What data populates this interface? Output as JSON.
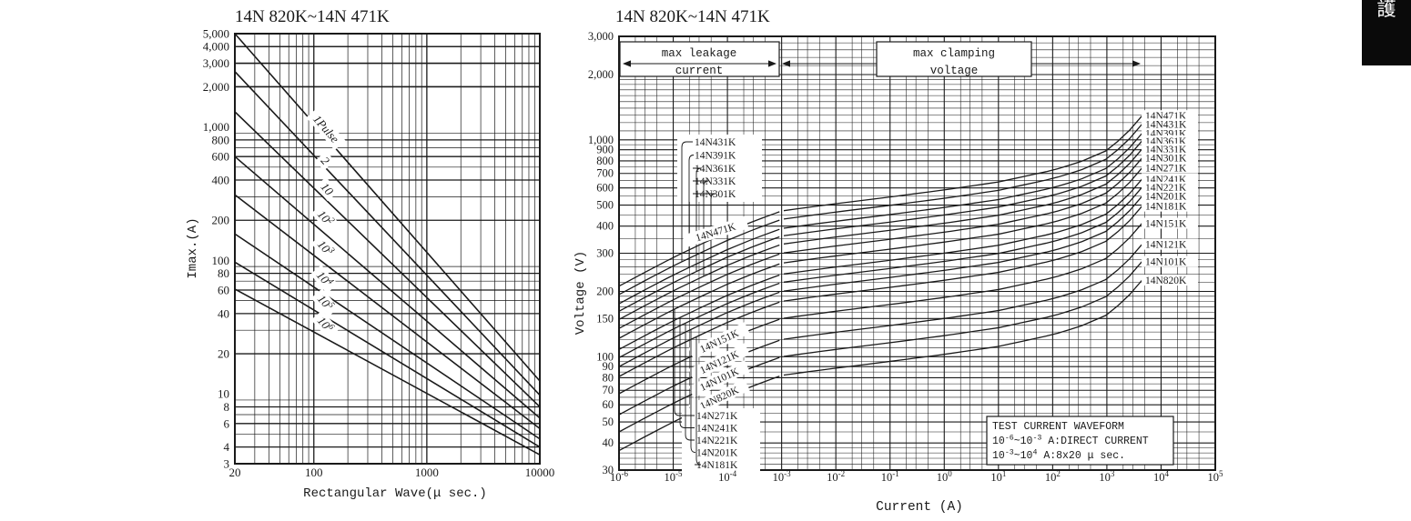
{
  "page": {
    "background": "#ffffff",
    "ink": "#1a1a1a"
  },
  "corner_tab": {
    "label": "護",
    "bg": "#0a0a0a",
    "color": "#ffffff"
  },
  "chart_data": [
    {
      "id": "pulse_rating",
      "type": "line",
      "title": "14N 820K~14N 471K",
      "xlabel": "Rectangular Wave(μ sec.)",
      "ylabel": "Imax.(A)",
      "xscale": "log",
      "yscale": "log",
      "xlim": [
        20,
        10000
      ],
      "ylim": [
        3,
        5000
      ],
      "grid": "log-paper",
      "x_ticks": [
        {
          "v": 20,
          "label": "20"
        },
        {
          "v": 100,
          "label": "100"
        },
        {
          "v": 1000,
          "label": "1000"
        },
        {
          "v": 10000,
          "label": "10000"
        }
      ],
      "y_ticks": [
        {
          "v": 5000,
          "label": "5,000"
        },
        {
          "v": 4000,
          "label": "4,000"
        },
        {
          "v": 3000,
          "label": "3,000"
        },
        {
          "v": 2000,
          "label": "2,000"
        },
        {
          "v": 1000,
          "label": "1,000"
        },
        {
          "v": 800,
          "label": "800"
        },
        {
          "v": 600,
          "label": "600"
        },
        {
          "v": 400,
          "label": "400"
        },
        {
          "v": 200,
          "label": "200"
        },
        {
          "v": 100,
          "label": "100"
        },
        {
          "v": 80,
          "label": "80"
        },
        {
          "v": 60,
          "label": "60"
        },
        {
          "v": 40,
          "label": "40"
        },
        {
          "v": 20,
          "label": "20"
        },
        {
          "v": 10,
          "label": "10"
        },
        {
          "v": 8,
          "label": "8"
        },
        {
          "v": 6,
          "label": "6"
        },
        {
          "v": 4,
          "label": "4"
        },
        {
          "v": 3,
          "label": "3"
        }
      ],
      "series": [
        {
          "name": "1Pulse",
          "points": [
            [
              20,
              5000
            ],
            [
              10000,
              12.5
            ]
          ]
        },
        {
          "name": "2",
          "points": [
            [
              20,
              2600
            ],
            [
              10000,
              9.8
            ]
          ]
        },
        {
          "name": "10",
          "points": [
            [
              20,
              1300
            ],
            [
              10000,
              8.0
            ]
          ]
        },
        {
          "name": "10^{2}",
          "points": [
            [
              20,
              600
            ],
            [
              10000,
              6.6
            ]
          ]
        },
        {
          "name": "10^{3}",
          "points": [
            [
              20,
              310
            ],
            [
              10000,
              5.5
            ]
          ]
        },
        {
          "name": "10^{4}",
          "points": [
            [
              20,
              158
            ],
            [
              10000,
              4.6
            ]
          ]
        },
        {
          "name": "10^{5}",
          "points": [
            [
              20,
              97
            ],
            [
              10000,
              4.0
            ]
          ]
        },
        {
          "name": "10^{6}",
          "points": [
            [
              20,
              61
            ],
            [
              10000,
              3.5
            ]
          ]
        }
      ]
    },
    {
      "id": "vi_characteristics",
      "type": "line",
      "title": "14N 820K~14N 471K",
      "xlabel": "Current (A)",
      "ylabel": "Voltage (V)",
      "xscale": "log",
      "yscale": "log",
      "xlim": [
        1e-06,
        100000.0
      ],
      "ylim": [
        30,
        3000
      ],
      "grid": "log-paper",
      "x_ticks": [
        {
          "exp": -6,
          "label": "10^{-6}"
        },
        {
          "exp": -5,
          "label": "10^{-5}"
        },
        {
          "exp": -4,
          "label": "10^{-4}"
        },
        {
          "exp": -3,
          "label": "10^{-3}"
        },
        {
          "exp": -2,
          "label": "10^{-2}"
        },
        {
          "exp": -1,
          "label": "10^{-1}"
        },
        {
          "exp": 0,
          "label": "10^{0}"
        },
        {
          "exp": 1,
          "label": "10^{1}"
        },
        {
          "exp": 2,
          "label": "10^{2}"
        },
        {
          "exp": 3,
          "label": "10^{3}"
        },
        {
          "exp": 4,
          "label": "10^{4}"
        },
        {
          "exp": 5,
          "label": "10^{5}"
        }
      ],
      "y_ticks": [
        {
          "v": 3000,
          "label": "3,000"
        },
        {
          "v": 2000,
          "label": "2,000"
        },
        {
          "v": 1000,
          "label": "1,000"
        },
        {
          "v": 900,
          "label": "900"
        },
        {
          "v": 800,
          "label": "800"
        },
        {
          "v": 700,
          "label": "700"
        },
        {
          "v": 600,
          "label": "600"
        },
        {
          "v": 500,
          "label": "500"
        },
        {
          "v": 400,
          "label": "400"
        },
        {
          "v": 300,
          "label": "300"
        },
        {
          "v": 200,
          "label": "200"
        },
        {
          "v": 150,
          "label": "150"
        },
        {
          "v": 100,
          "label": "100"
        },
        {
          "v": 90,
          "label": "90"
        },
        {
          "v": 80,
          "label": "80"
        },
        {
          "v": 70,
          "label": "70"
        },
        {
          "v": 60,
          "label": "60"
        },
        {
          "v": 50,
          "label": "50"
        },
        {
          "v": 40,
          "label": "40"
        },
        {
          "v": 30,
          "label": "30"
        }
      ],
      "region_labels": {
        "leakage": [
          "max leakage",
          "current"
        ],
        "clamping": [
          "max clamping",
          "voltage"
        ]
      },
      "note_box_lines": [
        "TEST CURRENT WAVEFORM",
        "10^{-6}~10^{-3} A:DIRECT CURRENT",
        "10^{-3}~10^{4} A:8x20 μ sec."
      ],
      "curve_shape": {
        "comment": "voltage multiplier vs log10(current); V = v_nominal x mult",
        "logI": [
          -6,
          -5.5,
          -5,
          -4.5,
          -4,
          -3.5,
          -3,
          -2.5,
          -2,
          -1,
          0,
          1,
          2,
          2.5,
          3,
          3.35,
          3.65
        ],
        "mult": [
          0.45,
          0.525,
          0.61,
          0.7,
          0.8,
          0.9,
          1.0,
          1.04,
          1.08,
          1.16,
          1.25,
          1.36,
          1.54,
          1.68,
          1.9,
          2.25,
          2.75
        ]
      },
      "series": [
        {
          "name": "14N820K",
          "v_nominal": 82
        },
        {
          "name": "14N101K",
          "v_nominal": 100
        },
        {
          "name": "14N121K",
          "v_nominal": 120
        },
        {
          "name": "14N151K",
          "v_nominal": 150
        },
        {
          "name": "14N181K",
          "v_nominal": 180
        },
        {
          "name": "14N201K",
          "v_nominal": 200
        },
        {
          "name": "14N221K",
          "v_nominal": 220
        },
        {
          "name": "14N241K",
          "v_nominal": 240
        },
        {
          "name": "14N271K",
          "v_nominal": 270
        },
        {
          "name": "14N301K",
          "v_nominal": 300
        },
        {
          "name": "14N331K",
          "v_nominal": 330
        },
        {
          "name": "14N361K",
          "v_nominal": 360
        },
        {
          "name": "14N391K",
          "v_nominal": 390
        },
        {
          "name": "14N431K",
          "v_nominal": 430
        },
        {
          "name": "14N471K",
          "v_nominal": 470
        }
      ],
      "label_groups": {
        "upper_box": [
          "14N431K",
          "14N391K",
          "14N361K",
          "14N331K",
          "14N301K"
        ],
        "on_curve_upper": "14N471K",
        "on_curve_mid": [
          "14N151K",
          "14N121K",
          "14N101K",
          "14N820K"
        ],
        "lower_box": [
          "14N271K",
          "14N241K",
          "14N221K",
          "14N201K",
          "14N181K"
        ],
        "right_column": [
          "14N471K",
          "14N431K",
          "14N391K",
          "14N361K",
          "14N331K",
          "14N301K",
          "14N271K",
          "14N241K",
          "14N221K",
          "14N201K",
          "14N181K",
          "14N151K",
          "14N121K",
          "14N101K",
          "14N820K"
        ]
      }
    }
  ]
}
